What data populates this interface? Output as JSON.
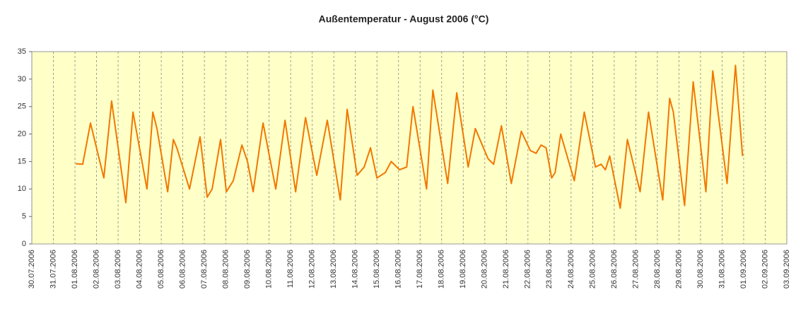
{
  "chart_data": {
    "type": "line",
    "title": "Außentemperatur - August 2006 (°C)",
    "series": [
      {
        "color": "#f07800",
        "x": [
          2.03,
          2.36,
          2.72,
          3.34,
          3.7,
          4.36,
          4.69,
          5.34,
          5.61,
          5.8,
          6.3,
          6.56,
          6.72,
          7.31,
          7.8,
          8.13,
          8.36,
          8.75,
          9.02,
          9.34,
          9.74,
          10.0,
          10.26,
          10.72,
          11.31,
          11.74,
          12.23,
          12.69,
          13.21,
          13.7,
          14.3,
          14.62,
          15.08,
          15.41,
          15.7,
          16.0,
          16.39,
          16.66,
          17.05,
          17.38,
          17.67,
          18.3,
          18.59,
          19.28,
          19.7,
          20.23,
          20.56,
          21.15,
          21.41,
          21.77,
          22.23,
          22.69,
          23.11,
          23.38,
          23.61,
          23.84,
          24.1,
          24.26,
          24.52,
          25.15,
          25.61,
          26.13,
          26.39,
          26.59,
          26.79,
          27.28,
          27.61,
          28.2,
          28.59,
          29.25,
          29.57,
          29.74,
          30.26,
          30.66,
          31.25,
          31.57,
          32.23,
          32.62,
          32.95
        ],
        "values": [
          14.6,
          14.5,
          22,
          12,
          26,
          7.5,
          24,
          10,
          24,
          21,
          9.5,
          19,
          17.5,
          10,
          19.5,
          8.5,
          10,
          19,
          9.5,
          11.5,
          18,
          15,
          9.5,
          22,
          10,
          22.5,
          9.5,
          23,
          12.5,
          22.5,
          8,
          24.5,
          12.5,
          14,
          17.5,
          12,
          13,
          15,
          13.5,
          14,
          25,
          10,
          28,
          11,
          27.5,
          14,
          21,
          15.5,
          14.5,
          21.5,
          11,
          20.5,
          17,
          16.5,
          18,
          17.5,
          12,
          13,
          20,
          11.5,
          24,
          14,
          14.5,
          13.5,
          16,
          6.5,
          19,
          9.5,
          24,
          8,
          26.5,
          24,
          7,
          29.5,
          9.5,
          31.5,
          11,
          32.5,
          16
        ]
      }
    ],
    "xlim": [
      0,
      35
    ],
    "xticks": [
      {
        "value": 0,
        "label": "30.07.2006"
      },
      {
        "value": 1,
        "label": "31.07.2006"
      },
      {
        "value": 2,
        "label": "01.08.2006"
      },
      {
        "value": 3,
        "label": "02.08.2006"
      },
      {
        "value": 4,
        "label": "03.08.2006"
      },
      {
        "value": 5,
        "label": "04.08.2006"
      },
      {
        "value": 6,
        "label": "05.08.2006"
      },
      {
        "value": 7,
        "label": "06.08.2006"
      },
      {
        "value": 8,
        "label": "07.08.2006"
      },
      {
        "value": 9,
        "label": "08.08.2006"
      },
      {
        "value": 10,
        "label": "09.08.2006"
      },
      {
        "value": 11,
        "label": "10.08.2006"
      },
      {
        "value": 12,
        "label": "11.08.2006"
      },
      {
        "value": 13,
        "label": "12.08.2006"
      },
      {
        "value": 14,
        "label": "13.08.2006"
      },
      {
        "value": 15,
        "label": "14.08.2006"
      },
      {
        "value": 16,
        "label": "15.08.2006"
      },
      {
        "value": 17,
        "label": "16.08.2006"
      },
      {
        "value": 18,
        "label": "17.08.2006"
      },
      {
        "value": 19,
        "label": "18.08.2006"
      },
      {
        "value": 20,
        "label": "19.08.2006"
      },
      {
        "value": 21,
        "label": "20.08.2006"
      },
      {
        "value": 22,
        "label": "21.08.2006"
      },
      {
        "value": 23,
        "label": "22.08.2006"
      },
      {
        "value": 24,
        "label": "23.08.2006"
      },
      {
        "value": 25,
        "label": "24.08.2006"
      },
      {
        "value": 26,
        "label": "25.08.2006"
      },
      {
        "value": 27,
        "label": "26.08.2006"
      },
      {
        "value": 28,
        "label": "27.08.2006"
      },
      {
        "value": 29,
        "label": "28.08.2006"
      },
      {
        "value": 30,
        "label": "29.08.2006"
      },
      {
        "value": 31,
        "label": "30.08.2006"
      },
      {
        "value": 32,
        "label": "31.08.2006"
      },
      {
        "value": 33,
        "label": "01.09.2006"
      },
      {
        "value": 34,
        "label": "02.09.2006"
      },
      {
        "value": 35,
        "label": "03.09.2006"
      }
    ],
    "ylim": [
      0,
      35
    ],
    "yticks": [
      0,
      5,
      10,
      15,
      20,
      25,
      30,
      35
    ],
    "grid": true
  }
}
